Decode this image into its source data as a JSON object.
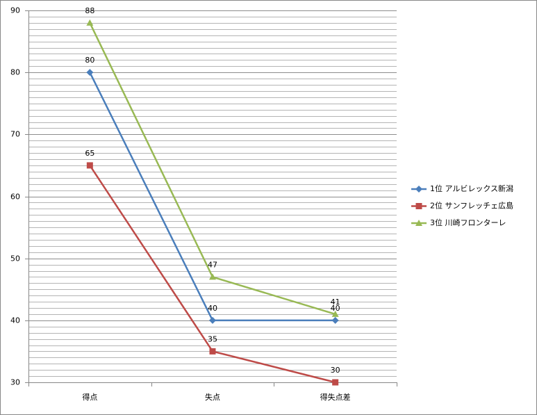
{
  "chart_data": {
    "type": "line",
    "categories": [
      "得点",
      "失点",
      "得失点差"
    ],
    "series": [
      {
        "name": "1位 アルビレックス新潟",
        "color": "#4a7ebb",
        "marker": "diamond",
        "values": [
          80,
          40,
          40
        ]
      },
      {
        "name": "2位 サンフレッチェ広島",
        "color": "#be4b48",
        "marker": "square",
        "values": [
          65,
          35,
          30
        ]
      },
      {
        "name": "3位 川崎フロンターレ",
        "color": "#98b954",
        "marker": "triangle",
        "values": [
          88,
          47,
          41
        ]
      }
    ],
    "ylim": [
      30,
      90
    ],
    "yticks": [
      30,
      40,
      50,
      60,
      70,
      80,
      90
    ],
    "minor_yticks": [
      31,
      32,
      33,
      34,
      35,
      36,
      37,
      38,
      39,
      41,
      42,
      43,
      44,
      45,
      46,
      47,
      48,
      49,
      51,
      52,
      53,
      54,
      55,
      56,
      57,
      58,
      59,
      61,
      62,
      63,
      64,
      65,
      66,
      67,
      68,
      69,
      71,
      72,
      73,
      74,
      75,
      76,
      77,
      78,
      79,
      81,
      82,
      83,
      84,
      85,
      86,
      87,
      88,
      89
    ],
    "grid": true,
    "legend": "right",
    "data_labels": true
  }
}
